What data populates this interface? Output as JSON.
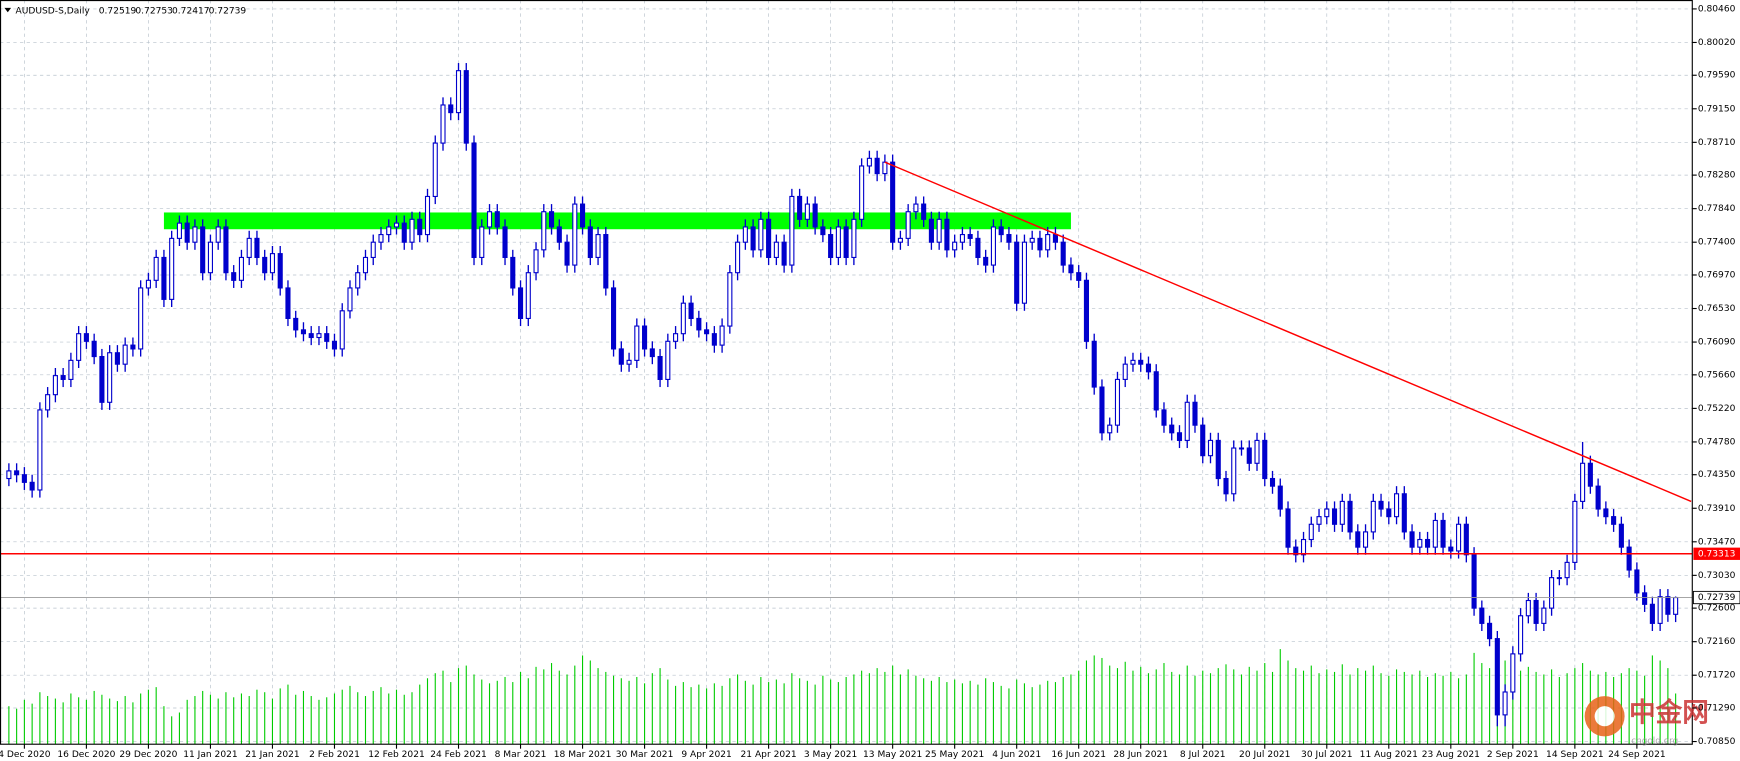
{
  "chart_data": {
    "type": "candlestick",
    "title": "AUDUSD-S,Daily",
    "categories": [
      null,
      null,
      "4 Dec 2020",
      null,
      null,
      null,
      null,
      null,
      null,
      null,
      "16 Dec 2020",
      null,
      null,
      null,
      null,
      null,
      null,
      null,
      "29 Dec 2020",
      null,
      null,
      null,
      null,
      null,
      null,
      null,
      "11 Jan 2021",
      null,
      null,
      null,
      null,
      null,
      null,
      null,
      "21 Jan 2021",
      null,
      null,
      null,
      null,
      null,
      null,
      null,
      "2 Feb 2021",
      null,
      null,
      null,
      null,
      null,
      null,
      null,
      "12 Feb 2021",
      null,
      null,
      null,
      null,
      null,
      null,
      null,
      "24 Feb 2021",
      null,
      null,
      null,
      null,
      null,
      null,
      null,
      "8 Mar 2021",
      null,
      null,
      null,
      null,
      null,
      null,
      null,
      "18 Mar 2021",
      null,
      null,
      null,
      null,
      null,
      null,
      null,
      "30 Mar 2021",
      null,
      null,
      null,
      null,
      null,
      null,
      null,
      "9 Apr 2021",
      null,
      null,
      null,
      null,
      null,
      null,
      null,
      "21 Apr 2021",
      null,
      null,
      null,
      null,
      null,
      null,
      null,
      "3 May 2021",
      null,
      null,
      null,
      null,
      null,
      null,
      null,
      "13 May 2021",
      null,
      null,
      null,
      null,
      null,
      null,
      null,
      "25 May 2021",
      null,
      null,
      null,
      null,
      null,
      null,
      null,
      "4 Jun 2021",
      null,
      null,
      null,
      null,
      null,
      null,
      null,
      "16 Jun 2021",
      null,
      null,
      null,
      null,
      null,
      null,
      null,
      "28 Jun 2021",
      null,
      null,
      null,
      null,
      null,
      null,
      null,
      "8 Jul 2021",
      null,
      null,
      null,
      null,
      null,
      null,
      null,
      "20 Jul 2021",
      null,
      null,
      null,
      null,
      null,
      null,
      null,
      "30 Jul 2021",
      null,
      null,
      null,
      null,
      null,
      null,
      null,
      "11 Aug 2021",
      null,
      null,
      null,
      null,
      null,
      null,
      null,
      "23 Aug 2021",
      null,
      null,
      null,
      null,
      null,
      null,
      null,
      "2 Sep 2021",
      null,
      null,
      null,
      null,
      null,
      null,
      null,
      "14 Sep 2021",
      null,
      null,
      null,
      null,
      null,
      null,
      null,
      "24 Sep 2021",
      null,
      null,
      null,
      null,
      null
    ],
    "open": [
      0.743,
      0.744,
      0.7435,
      0.7425,
      0.7415,
      0.752,
      0.754,
      0.7565,
      0.756,
      0.7585,
      0.762,
      0.761,
      0.759,
      0.753,
      0.7595,
      0.758,
      0.7605,
      0.76,
      0.768,
      0.769,
      0.772,
      0.7665,
      0.7745,
      0.7765,
      0.774,
      0.776,
      0.77,
      0.774,
      0.776,
      0.77,
      0.769,
      0.772,
      0.7745,
      0.772,
      0.77,
      0.7725,
      0.768,
      0.764,
      0.7625,
      0.762,
      0.7615,
      0.762,
      0.761,
      0.76,
      0.765,
      0.768,
      0.77,
      0.772,
      0.774,
      0.775,
      0.776,
      0.7765,
      0.774,
      0.777,
      0.775,
      0.78,
      0.787,
      0.792,
      0.791,
      0.7965,
      0.787,
      0.772,
      0.776,
      0.778,
      0.776,
      0.772,
      0.768,
      0.764,
      0.77,
      0.773,
      0.778,
      0.776,
      0.774,
      0.771,
      0.779,
      0.776,
      0.772,
      0.775,
      0.768,
      0.76,
      0.758,
      0.7585,
      0.763,
      0.76,
      0.759,
      0.756,
      0.761,
      0.762,
      0.766,
      0.764,
      0.7625,
      0.762,
      0.7605,
      0.763,
      0.77,
      0.774,
      0.776,
      0.773,
      0.777,
      0.772,
      0.774,
      0.771,
      0.78,
      0.777,
      0.779,
      0.776,
      0.775,
      0.772,
      0.776,
      0.772,
      0.777,
      0.784,
      0.785,
      0.783,
      0.7845,
      0.774,
      0.7745,
      0.778,
      0.779,
      0.777,
      0.774,
      0.777,
      0.773,
      0.774,
      0.775,
      0.7745,
      0.772,
      0.771,
      0.776,
      0.775,
      0.774,
      0.766,
      0.774,
      0.7745,
      0.773,
      0.775,
      0.774,
      0.771,
      0.77,
      0.769,
      0.761,
      0.755,
      0.749,
      0.75,
      0.756,
      0.758,
      0.7585,
      0.758,
      0.757,
      0.752,
      0.75,
      0.749,
      0.748,
      0.753,
      0.75,
      0.746,
      0.748,
      0.743,
      0.741,
      0.747,
      0.747,
      0.745,
      0.748,
      0.743,
      0.742,
      0.739,
      0.734,
      0.733,
      0.735,
      0.737,
      0.738,
      0.739,
      0.737,
      0.74,
      0.736,
      0.734,
      0.736,
      0.74,
      0.739,
      0.738,
      0.741,
      0.736,
      0.734,
      0.735,
      0.734,
      0.7375,
      0.734,
      0.7335,
      0.737,
      0.733,
      0.726,
      0.724,
      0.722,
      0.712,
      0.715,
      0.72,
      0.725,
      0.727,
      0.724,
      0.726,
      0.73,
      0.73,
      0.732,
      0.74,
      0.745,
      0.742,
      0.739,
      0.738,
      0.737,
      0.734,
      0.731,
      0.728,
      0.7265,
      0.724,
      0.7275,
      0.72519
    ],
    "high": [
      0.745,
      0.745,
      0.7445,
      0.7435,
      0.753,
      0.755,
      0.7575,
      0.7575,
      0.7595,
      0.763,
      0.763,
      0.762,
      0.76,
      0.7605,
      0.7605,
      0.7615,
      0.7615,
      0.769,
      0.77,
      0.773,
      0.773,
      0.7755,
      0.7775,
      0.7775,
      0.777,
      0.777,
      0.775,
      0.777,
      0.777,
      0.771,
      0.773,
      0.7755,
      0.7755,
      0.773,
      0.7735,
      0.7735,
      0.769,
      0.765,
      0.7635,
      0.763,
      0.763,
      0.763,
      0.762,
      0.766,
      0.769,
      0.771,
      0.773,
      0.775,
      0.776,
      0.777,
      0.7775,
      0.7775,
      0.778,
      0.778,
      0.781,
      0.788,
      0.793,
      0.793,
      0.7975,
      0.7975,
      0.788,
      0.777,
      0.779,
      0.779,
      0.777,
      0.773,
      0.769,
      0.771,
      0.774,
      0.779,
      0.779,
      0.777,
      0.775,
      0.78,
      0.78,
      0.777,
      0.776,
      0.776,
      0.769,
      0.761,
      0.7595,
      0.764,
      0.764,
      0.761,
      0.76,
      0.762,
      0.763,
      0.767,
      0.767,
      0.765,
      0.7635,
      0.763,
      0.764,
      0.771,
      0.775,
      0.777,
      0.777,
      0.778,
      0.778,
      0.775,
      0.775,
      0.781,
      0.781,
      0.78,
      0.78,
      0.777,
      0.776,
      0.777,
      0.777,
      0.778,
      0.785,
      0.786,
      0.786,
      0.7855,
      0.7855,
      0.7755,
      0.779,
      0.78,
      0.78,
      0.778,
      0.778,
      0.778,
      0.775,
      0.776,
      0.776,
      0.7755,
      0.773,
      0.777,
      0.777,
      0.776,
      0.775,
      0.775,
      0.7755,
      0.7755,
      0.776,
      0.776,
      0.775,
      0.772,
      0.771,
      0.77,
      0.762,
      0.756,
      0.751,
      0.757,
      0.759,
      0.7595,
      0.7595,
      0.759,
      0.758,
      0.753,
      0.751,
      0.75,
      0.754,
      0.754,
      0.751,
      0.749,
      0.749,
      0.744,
      0.748,
      0.748,
      0.748,
      0.749,
      0.749,
      0.744,
      0.743,
      0.74,
      0.735,
      0.736,
      0.738,
      0.739,
      0.74,
      0.74,
      0.741,
      0.741,
      0.737,
      0.737,
      0.741,
      0.741,
      0.74,
      0.742,
      0.742,
      0.737,
      0.736,
      0.736,
      0.7385,
      0.7385,
      0.735,
      0.738,
      0.738,
      0.734,
      0.727,
      0.725,
      0.723,
      0.716,
      0.721,
      0.726,
      0.728,
      0.728,
      0.727,
      0.731,
      0.731,
      0.733,
      0.741,
      0.7478,
      0.746,
      0.743,
      0.74,
      0.739,
      0.738,
      0.735,
      0.732,
      0.729,
      0.7275,
      0.7285,
      0.7285,
      0.72753
    ],
    "low": [
      0.742,
      0.7425,
      0.7415,
      0.7405,
      0.7405,
      0.751,
      0.753,
      0.755,
      0.755,
      0.7575,
      0.76,
      0.758,
      0.752,
      0.752,
      0.757,
      0.757,
      0.759,
      0.759,
      0.767,
      0.768,
      0.7655,
      0.7655,
      0.7735,
      0.773,
      0.773,
      0.769,
      0.769,
      0.773,
      0.769,
      0.768,
      0.768,
      0.771,
      0.771,
      0.769,
      0.769,
      0.767,
      0.763,
      0.7615,
      0.761,
      0.7605,
      0.7605,
      0.76,
      0.759,
      0.759,
      0.764,
      0.767,
      0.769,
      0.771,
      0.773,
      0.774,
      0.775,
      0.773,
      0.773,
      0.774,
      0.774,
      0.779,
      0.786,
      0.79,
      0.79,
      0.786,
      0.771,
      0.771,
      0.775,
      0.775,
      0.771,
      0.767,
      0.763,
      0.763,
      0.769,
      0.772,
      0.775,
      0.773,
      0.77,
      0.77,
      0.775,
      0.771,
      0.771,
      0.767,
      0.759,
      0.757,
      0.757,
      0.7575,
      0.759,
      0.758,
      0.755,
      0.755,
      0.76,
      0.761,
      0.763,
      0.7615,
      0.761,
      0.7595,
      0.7595,
      0.762,
      0.769,
      0.773,
      0.772,
      0.772,
      0.771,
      0.771,
      0.77,
      0.77,
      0.776,
      0.776,
      0.775,
      0.774,
      0.771,
      0.771,
      0.771,
      0.771,
      0.776,
      0.783,
      0.782,
      0.782,
      0.773,
      0.773,
      0.7735,
      0.777,
      0.776,
      0.773,
      0.773,
      0.772,
      0.772,
      0.773,
      0.7735,
      0.771,
      0.77,
      0.77,
      0.774,
      0.773,
      0.765,
      0.765,
      0.773,
      0.772,
      0.772,
      0.773,
      0.77,
      0.769,
      0.768,
      0.76,
      0.754,
      0.748,
      0.748,
      0.749,
      0.755,
      0.757,
      0.757,
      0.756,
      0.751,
      0.749,
      0.748,
      0.747,
      0.747,
      0.749,
      0.745,
      0.745,
      0.742,
      0.74,
      0.74,
      0.746,
      0.744,
      0.744,
      0.742,
      0.741,
      0.738,
      0.733,
      0.732,
      0.732,
      0.734,
      0.736,
      0.737,
      0.736,
      0.736,
      0.735,
      0.733,
      0.733,
      0.735,
      0.738,
      0.737,
      0.737,
      0.735,
      0.733,
      0.733,
      0.733,
      0.733,
      0.733,
      0.7325,
      0.7325,
      0.732,
      0.725,
      0.723,
      0.721,
      0.7105,
      0.7105,
      0.714,
      0.719,
      0.724,
      0.723,
      0.723,
      0.725,
      0.729,
      0.729,
      0.731,
      0.739,
      0.741,
      0.738,
      0.737,
      0.736,
      0.733,
      0.73,
      0.727,
      0.7255,
      0.723,
      0.723,
      0.7242,
      0.72417
    ],
    "close": [
      0.744,
      0.7435,
      0.7425,
      0.7415,
      0.752,
      0.754,
      0.7565,
      0.756,
      0.7585,
      0.762,
      0.761,
      0.759,
      0.753,
      0.7595,
      0.758,
      0.7605,
      0.76,
      0.768,
      0.769,
      0.772,
      0.7665,
      0.7745,
      0.7765,
      0.774,
      0.776,
      0.77,
      0.774,
      0.776,
      0.77,
      0.769,
      0.772,
      0.7745,
      0.772,
      0.77,
      0.7725,
      0.768,
      0.764,
      0.7625,
      0.762,
      0.7615,
      0.762,
      0.761,
      0.76,
      0.765,
      0.768,
      0.77,
      0.772,
      0.774,
      0.775,
      0.776,
      0.7765,
      0.774,
      0.777,
      0.775,
      0.78,
      0.787,
      0.792,
      0.791,
      0.7965,
      0.787,
      0.772,
      0.776,
      0.778,
      0.776,
      0.772,
      0.768,
      0.764,
      0.77,
      0.773,
      0.778,
      0.776,
      0.774,
      0.771,
      0.779,
      0.776,
      0.772,
      0.775,
      0.768,
      0.76,
      0.758,
      0.7585,
      0.763,
      0.76,
      0.759,
      0.756,
      0.761,
      0.762,
      0.766,
      0.764,
      0.7625,
      0.762,
      0.7605,
      0.763,
      0.77,
      0.774,
      0.776,
      0.773,
      0.777,
      0.772,
      0.774,
      0.771,
      0.78,
      0.777,
      0.779,
      0.776,
      0.775,
      0.772,
      0.776,
      0.772,
      0.777,
      0.784,
      0.785,
      0.783,
      0.7845,
      0.774,
      0.7745,
      0.778,
      0.779,
      0.777,
      0.774,
      0.777,
      0.773,
      0.774,
      0.775,
      0.7745,
      0.772,
      0.771,
      0.776,
      0.775,
      0.774,
      0.766,
      0.774,
      0.7745,
      0.773,
      0.775,
      0.774,
      0.771,
      0.77,
      0.769,
      0.761,
      0.755,
      0.749,
      0.75,
      0.756,
      0.758,
      0.7585,
      0.758,
      0.757,
      0.752,
      0.75,
      0.749,
      0.748,
      0.753,
      0.75,
      0.746,
      0.748,
      0.743,
      0.741,
      0.747,
      0.747,
      0.745,
      0.748,
      0.743,
      0.742,
      0.739,
      0.734,
      0.733,
      0.735,
      0.737,
      0.738,
      0.739,
      0.737,
      0.74,
      0.736,
      0.734,
      0.736,
      0.74,
      0.739,
      0.738,
      0.741,
      0.736,
      0.734,
      0.735,
      0.734,
      0.7375,
      0.734,
      0.7335,
      0.737,
      0.733,
      0.726,
      0.724,
      0.722,
      0.712,
      0.715,
      0.72,
      0.725,
      0.727,
      0.724,
      0.726,
      0.73,
      0.73,
      0.732,
      0.74,
      0.745,
      0.742,
      0.739,
      0.738,
      0.737,
      0.734,
      0.731,
      0.728,
      0.7265,
      0.724,
      0.7275,
      0.7252,
      0.72739
    ],
    "volume": [
      30000,
      28000,
      35000,
      32000,
      41000,
      38000,
      36000,
      33000,
      40000,
      37000,
      35000,
      42000,
      39000,
      36000,
      34000,
      38000,
      33000,
      40000,
      43000,
      45000,
      30000,
      22000,
      25000,
      35000,
      38000,
      42000,
      39000,
      36000,
      41000,
      37000,
      40000,
      38000,
      43000,
      41000,
      36000,
      44000,
      47000,
      39000,
      42000,
      38000,
      35000,
      37000,
      40000,
      43000,
      46000,
      41000,
      38000,
      42000,
      45000,
      40000,
      43000,
      39000,
      41000,
      47000,
      52000,
      56000,
      58000,
      49000,
      60000,
      62000,
      55000,
      51000,
      48000,
      50000,
      53000,
      49000,
      57000,
      52000,
      61000,
      59000,
      64000,
      58000,
      55000,
      62000,
      70000,
      66000,
      60000,
      57000,
      54000,
      52000,
      50000,
      53000,
      48000,
      56000,
      60000,
      51000,
      46000,
      49000,
      45000,
      47000,
      44000,
      48000,
      46000,
      52000,
      55000,
      50000,
      47000,
      53000,
      49000,
      51000,
      48000,
      56000,
      52000,
      50000,
      47000,
      54000,
      51000,
      49000,
      53000,
      55000,
      58000,
      56000,
      60000,
      57000,
      62000,
      55000,
      59000,
      54000,
      52000,
      50000,
      53000,
      49000,
      51000,
      48000,
      50000,
      47000,
      52000,
      49000,
      46000,
      44000,
      51000,
      48000,
      45000,
      47000,
      50000,
      49000,
      53000,
      55000,
      58000,
      66000,
      70000,
      68000,
      62000,
      60000,
      65000,
      58000,
      61000,
      56000,
      59000,
      64000,
      57000,
      55000,
      62000,
      54000,
      58000,
      56000,
      60000,
      63000,
      59000,
      55000,
      61000,
      58000,
      64000,
      57000,
      75000,
      66000,
      60000,
      58000,
      62000,
      56000,
      59000,
      57000,
      63000,
      55000,
      60000,
      58000,
      62000,
      56000,
      54000,
      59000,
      57000,
      55000,
      58000,
      53000,
      56000,
      54000,
      57000,
      52000,
      55000,
      72000,
      64000,
      60000,
      75000,
      66000,
      62000,
      58000,
      61000,
      57000,
      55000,
      59000,
      53000,
      56000,
      60000,
      64000,
      58000,
      55000,
      57000,
      53000,
      56000,
      60000,
      58000,
      54000,
      70000,
      66000,
      60000,
      40000
    ],
    "bull_color": "#ffffff",
    "bear_color": "#0000cc",
    "volume_color": "#00cc00",
    "ylim": [
      0.70815,
      0.80577
    ],
    "yticks": [
      {
        "value": 0.8046,
        "label": "0.80460"
      },
      {
        "value": 0.8002,
        "label": "0.80020"
      },
      {
        "value": 0.7959,
        "label": "0.79590"
      },
      {
        "value": 0.7915,
        "label": "0.79150"
      },
      {
        "value": 0.7871,
        "label": "0.78710"
      },
      {
        "value": 0.7828,
        "label": "0.78280"
      },
      {
        "value": 0.7784,
        "label": "0.77840"
      },
      {
        "value": 0.774,
        "label": "0.77400"
      },
      {
        "value": 0.7697,
        "label": "0.76970"
      },
      {
        "value": 0.7653,
        "label": "0.76530"
      },
      {
        "value": 0.7609,
        "label": "0.76090"
      },
      {
        "value": 0.7566,
        "label": "0.75660"
      },
      {
        "value": 0.7522,
        "label": "0.75220"
      },
      {
        "value": 0.7478,
        "label": "0.74780"
      },
      {
        "value": 0.7435,
        "label": "0.74350"
      },
      {
        "value": 0.7391,
        "label": "0.73910"
      },
      {
        "value": 0.7347,
        "label": "0.73470"
      },
      {
        "value": 0.7303,
        "label": "0.73030"
      },
      {
        "value": 0.726,
        "label": "0.72600"
      },
      {
        "value": 0.7216,
        "label": "0.72160"
      },
      {
        "value": 0.7172,
        "label": "0.71720"
      },
      {
        "value": 0.7129,
        "label": "0.71290"
      },
      {
        "value": 0.7085,
        "label": "0.70850"
      }
    ],
    "grid": true,
    "hline": {
      "value": 0.73313,
      "color": "#ff0000"
    },
    "trendline": {
      "start": [
        113,
        0.7845
      ],
      "end": [
        217,
        0.74
      ],
      "color": "#ff0000"
    },
    "zone": {
      "x": [
        20,
        137
      ],
      "ylim": [
        0.7757,
        0.7779
      ],
      "color": "#00ff00"
    },
    "watermark": {
      "name": "中金网",
      "url": "cngold.org"
    }
  }
}
